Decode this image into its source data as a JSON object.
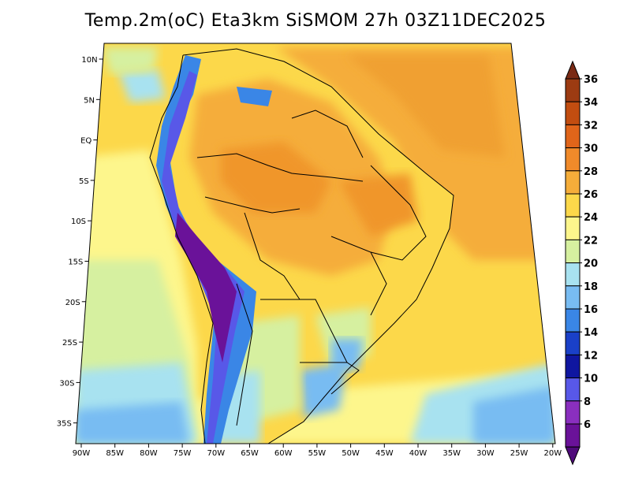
{
  "title": "Temp.2m(oC) Eta3km SiSMOM 27h 03Z11DEC2025",
  "axes": {
    "lon_labels": [
      "90W",
      "85W",
      "80W",
      "75W",
      "70W",
      "65W",
      "60W",
      "55W",
      "50W",
      "45W",
      "40W",
      "35W",
      "30W",
      "25W",
      "20W"
    ],
    "lat_labels": [
      "10N",
      "5N",
      "EQ",
      "5S",
      "10S",
      "15S",
      "20S",
      "25S",
      "30S",
      "35S"
    ]
  },
  "colorbar": {
    "labels": [
      "36",
      "34",
      "32",
      "30",
      "28",
      "26",
      "24",
      "22",
      "20",
      "18",
      "16",
      "14",
      "12",
      "10",
      "8",
      "6"
    ],
    "colors": [
      "#7a2a14",
      "#9c3b12",
      "#c24d10",
      "#e0651a",
      "#f08a2a",
      "#f5ad3a",
      "#fcd84a",
      "#fdf68c",
      "#d6f0a0",
      "#a8e2f0",
      "#78bcf2",
      "#3a86e6",
      "#1a40c8",
      "#0f16a0",
      "#5858e8",
      "#8a2fbf",
      "#6a1299",
      "#4f0a7a"
    ]
  },
  "chart_data": {
    "type": "heatmap",
    "title": "Temp.2m(oC) Eta3km SiSMOM 27h 03Z11DEC2025",
    "variable": "2 m temperature (oC)",
    "x_range": [
      "90W",
      "20W"
    ],
    "y_range": [
      "38S",
      "12N"
    ],
    "colorbar_range": [
      6,
      36
    ],
    "colorbar_step": 2
  }
}
